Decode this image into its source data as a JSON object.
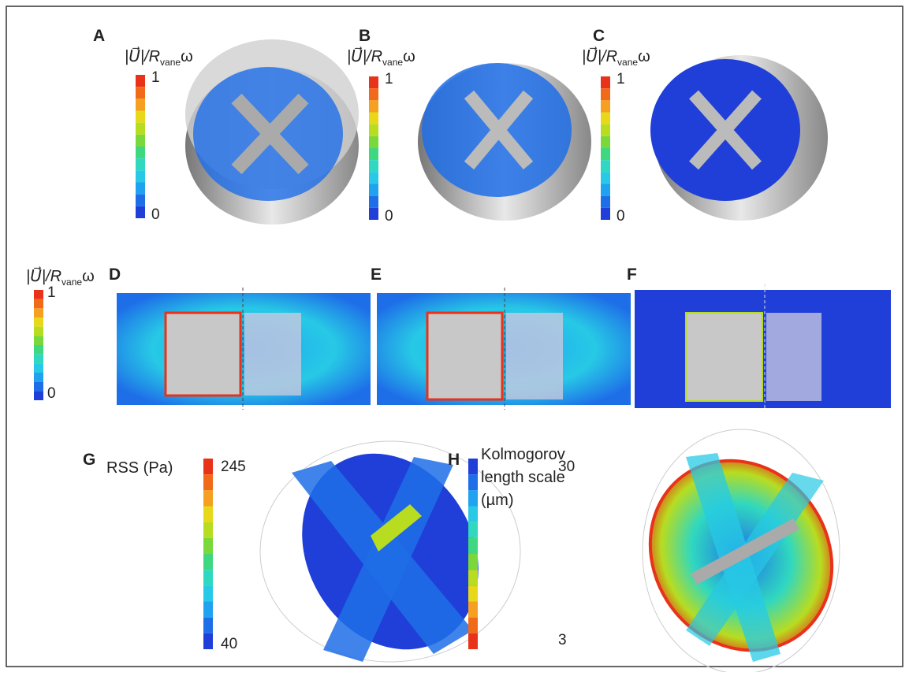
{
  "panel_letters": [
    "A",
    "B",
    "C",
    "D",
    "E",
    "F",
    "G",
    "H"
  ],
  "colorbars": [
    {
      "label": {
        "main": "|U⃗|/R",
        "sub": "vane",
        "tail": "ω"
      },
      "max": "1",
      "min": "0"
    },
    {
      "label": {
        "main": "|U⃗|/R",
        "sub": "vane",
        "tail": "ω"
      },
      "max": "1",
      "min": "0"
    },
    {
      "label": {
        "main": "|U⃗|/R",
        "sub": "vane",
        "tail": "ω"
      },
      "max": "1",
      "min": "0"
    },
    {
      "label": {
        "main": "|U⃗|/R",
        "sub": "vane",
        "tail": "ω"
      },
      "max": "1",
      "min": "0"
    },
    {
      "label_lines": [
        "RSS (Pa)"
      ],
      "max": "245",
      "min": "40"
    },
    {
      "label_lines": [
        "Kolmogorov",
        "length scale",
        "(µm)"
      ],
      "max": "30",
      "min": "3",
      "reversed": true
    }
  ]
}
